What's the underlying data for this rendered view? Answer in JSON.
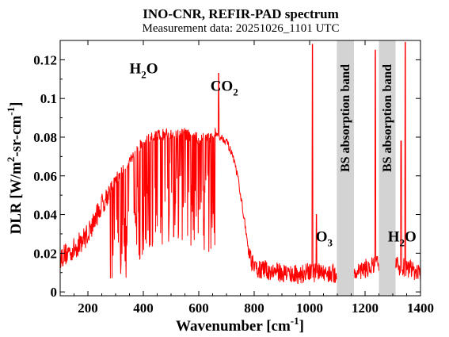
{
  "chart_data": {
    "type": "line",
    "title": "INO-CNR, REFIR-PAD spectrum",
    "subtitle": "Measurement data: 20251026_1101 UTC",
    "xlabel": {
      "base": "Wavenumber [cm",
      "sup": "-1",
      "end": "]"
    },
    "ylabel": {
      "a": "DLR [W/m",
      "sup1": "2",
      "b": "-sr-cm",
      "sup2": "-1",
      "c": "]"
    },
    "xlim": [
      100,
      1400
    ],
    "ylim": [
      -0.002,
      0.13
    ],
    "x_ticks": [
      200,
      400,
      600,
      800,
      1000,
      1200,
      1400
    ],
    "y_ticks": [
      0,
      0.02,
      0.04,
      0.06,
      0.08,
      0.1,
      0.12
    ],
    "y_tick_labels": [
      "0",
      "0.02",
      "0.04",
      "0.06",
      "0.08",
      "0.1",
      "0.12"
    ],
    "grid": false,
    "line_color": "#ff0000",
    "band_color": "#d3d3d3",
    "bands": [
      {
        "label": "BS absorption band",
        "xmin": 1098,
        "xmax": 1160
      },
      {
        "label": "BS absorption band",
        "xmin": 1250,
        "xmax": 1310
      }
    ],
    "annotations": [
      {
        "text": "H",
        "sub": "2",
        "text2": "O",
        "x": 350,
        "y": 0.113
      },
      {
        "text": "CO",
        "sub": "2",
        "text2": "",
        "x": 642,
        "y": 0.104
      },
      {
        "text": "O",
        "sub": "3",
        "text2": "",
        "x": 1022,
        "y": 0.026
      },
      {
        "text": "H",
        "sub": "2",
        "text2": "O",
        "x": 1282,
        "y": 0.026
      }
    ],
    "series": [
      {
        "envelope": [
          [
            100,
            0.018
          ],
          [
            150,
            0.022
          ],
          [
            200,
            0.03
          ],
          [
            250,
            0.045
          ],
          [
            300,
            0.058
          ],
          [
            350,
            0.068
          ],
          [
            400,
            0.078
          ],
          [
            450,
            0.081
          ],
          [
            500,
            0.082
          ],
          [
            550,
            0.082
          ],
          [
            600,
            0.079
          ],
          [
            640,
            0.08
          ],
          [
            660,
            0.082
          ],
          [
            700,
            0.078
          ],
          [
            720,
            0.071
          ],
          [
            740,
            0.06
          ],
          [
            760,
            0.042
          ],
          [
            780,
            0.02
          ],
          [
            800,
            0.012
          ],
          [
            850,
            0.011
          ],
          [
            900,
            0.01
          ],
          [
            950,
            0.009
          ],
          [
            1000,
            0.01
          ],
          [
            1050,
            0.01
          ],
          [
            1098,
            0.009
          ],
          [
            1160,
            0.01
          ],
          [
            1200,
            0.012
          ],
          [
            1250,
            0.014
          ],
          [
            1310,
            0.014
          ],
          [
            1400,
            0.01
          ]
        ],
        "absorption_dips": [
          [
            300,
            0.065
          ],
          [
            350,
            0.06
          ],
          [
            400,
            0.055
          ],
          [
            450,
            0.05
          ],
          [
            500,
            0.045
          ],
          [
            550,
            0.04
          ],
          [
            600,
            0.045
          ],
          [
            640,
            0.06
          ]
        ],
        "spikes": [
          [
            672,
            0.113
          ],
          [
            1010,
            0.128
          ],
          [
            1025,
            0.04
          ],
          [
            1237,
            0.125
          ],
          [
            1330,
            0.078
          ],
          [
            1345,
            0.129
          ]
        ]
      }
    ]
  }
}
